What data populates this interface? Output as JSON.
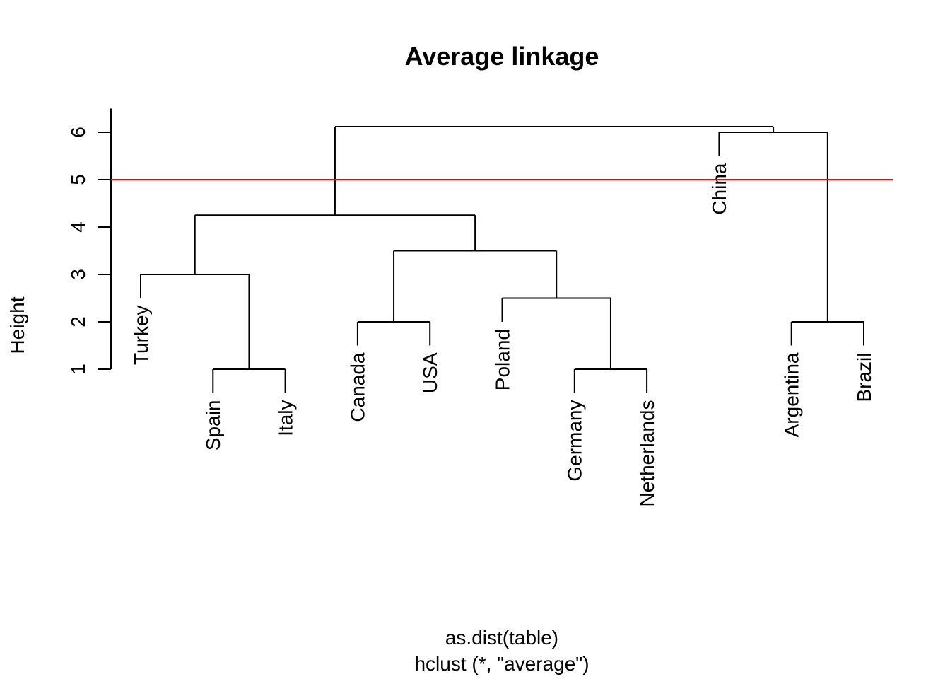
{
  "chart_data": {
    "type": "dendrogram",
    "title": "Average linkage",
    "ylabel": "Height",
    "xlabel": "as.dist(table)",
    "sub": "hclust (*, \"average\")",
    "ylim": [
      1,
      6.5
    ],
    "yticks": [
      1,
      2,
      3,
      4,
      5,
      6
    ],
    "cut_height": 5,
    "cut_line_color": "#ff0000",
    "line_color": "#000000",
    "leaves": [
      "Turkey",
      "Spain",
      "Italy",
      "Canada",
      "USA",
      "Poland",
      "Germany",
      "Netherlands",
      "China",
      "Argentina",
      "Brazil"
    ],
    "merges": [
      {
        "a": "Spain",
        "b": "Italy",
        "height": 1.0
      },
      {
        "a": "Germany",
        "b": "Netherlands",
        "height": 1.0
      },
      {
        "a": "Canada",
        "b": "USA",
        "height": 2.0
      },
      {
        "a": "Argentina",
        "b": "Brazil",
        "height": 2.0
      },
      {
        "a": "Poland",
        "b": "(Germany, Netherlands)",
        "height": 2.5
      },
      {
        "a": "Turkey",
        "b": "(Spain, Italy)",
        "height": 3.0
      },
      {
        "a": "(Canada, USA)",
        "b": "(Poland, Germany, Netherlands)",
        "height": 3.5
      },
      {
        "a": "(Turkey, Spain, Italy)",
        "b": "(Canada, USA, Poland, Germany, Netherlands)",
        "height": 4.25
      },
      {
        "a": "China",
        "b": "(Argentina, Brazil)",
        "height": 6.0
      },
      {
        "a": "(Europe/America cluster)",
        "b": "(China, Argentina, Brazil)",
        "height": 6.12
      }
    ]
  }
}
